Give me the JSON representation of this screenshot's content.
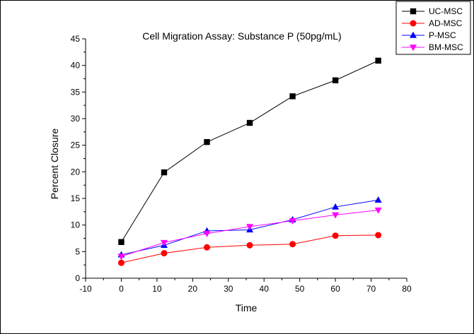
{
  "chart_data": {
    "type": "line",
    "title": "Cell Migration Assay: Substance P (50pg/mL)",
    "xlabel": "Time",
    "ylabel": "Percent Closure",
    "xlim": [
      -10,
      80
    ],
    "ylim": [
      0,
      45
    ],
    "xticks": [
      -10,
      0,
      10,
      20,
      30,
      40,
      50,
      60,
      70,
      80
    ],
    "yticks": [
      0,
      5,
      10,
      15,
      20,
      25,
      30,
      35,
      40,
      45
    ],
    "grid": false,
    "legend_position": "top-right",
    "x": [
      0,
      12,
      24,
      36,
      48,
      60,
      72
    ],
    "series": [
      {
        "name": "UC-MSC",
        "color": "#000000",
        "marker": "square",
        "values": [
          6.8,
          19.9,
          25.6,
          29.2,
          34.2,
          37.2,
          40.9
        ]
      },
      {
        "name": "AD-MSC",
        "color": "#ff0000",
        "marker": "circle",
        "values": [
          2.9,
          4.7,
          5.8,
          6.2,
          6.4,
          8.0,
          8.1
        ]
      },
      {
        "name": "P-MSC",
        "color": "#0000ff",
        "marker": "triangle-up",
        "values": [
          4.4,
          6.2,
          8.9,
          9.1,
          11.0,
          13.4,
          14.7
        ]
      },
      {
        "name": "BM-MSC",
        "color": "#ff00ff",
        "marker": "triangle-down",
        "values": [
          4.1,
          6.7,
          8.4,
          9.7,
          10.8,
          11.9,
          12.8
        ]
      }
    ]
  }
}
